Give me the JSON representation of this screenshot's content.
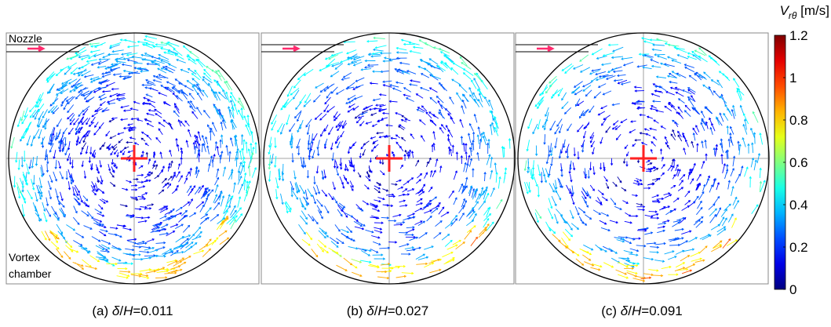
{
  "panels": [
    {
      "caption": {
        "tag": "(a)",
        "num": "δ",
        "den": "H",
        "value": "=0.011"
      },
      "labels": [
        "Nozzle",
        "Vortex",
        "chamber"
      ]
    },
    {
      "caption": {
        "tag": "(b)",
        "num": "δ",
        "den": "H",
        "value": "=0.027"
      }
    },
    {
      "caption": {
        "tag": "(c)",
        "num": "δ",
        "den": "H",
        "value": "=0.091"
      }
    }
  ],
  "colorbar": {
    "symbol": "V",
    "subscript": "rθ",
    "unit": "[m/s]",
    "range": [
      0,
      1.2
    ],
    "ticks": [
      0,
      0.2,
      0.4,
      0.6,
      0.8,
      1,
      1.2
    ]
  }
}
